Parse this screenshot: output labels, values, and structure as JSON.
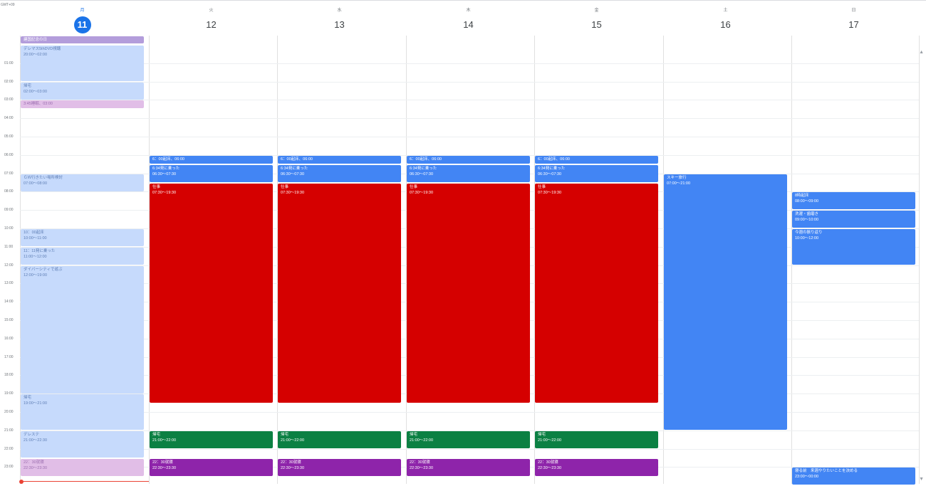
{
  "calendar": {
    "timezone_label": "GMT+09",
    "days": [
      {
        "weekday": "月",
        "date": "11",
        "today": true
      },
      {
        "weekday": "火",
        "date": "12"
      },
      {
        "weekday": "水",
        "date": "13"
      },
      {
        "weekday": "木",
        "date": "14"
      },
      {
        "weekday": "金",
        "date": "15"
      },
      {
        "weekday": "土",
        "date": "16"
      },
      {
        "weekday": "日",
        "date": "17"
      }
    ],
    "hours": [
      "01:00",
      "02:00",
      "03:00",
      "04:00",
      "05:00",
      "06:00",
      "07:00",
      "08:00",
      "09:00",
      "10:00",
      "11:00",
      "12:00",
      "13:00",
      "14:00",
      "15:00",
      "16:00",
      "17:00",
      "18:00",
      "19:00",
      "20:00",
      "21:00",
      "22:00",
      "23:00"
    ],
    "all_day_event": {
      "title": "建国記念の日"
    },
    "events": [
      {
        "day": 0,
        "start": 0,
        "end": 2,
        "title": "デレマス5thDVD視聴",
        "time": "20:00～02:00",
        "bg": "#c6dafc",
        "fg": "#5f7fb5"
      },
      {
        "day": 0,
        "start": 2,
        "end": 3,
        "title": "帰宅",
        "time": "02:00～03:00",
        "bg": "#c6dafc",
        "fg": "#5f7fb5"
      },
      {
        "day": 0,
        "start": 3,
        "end": 3.5,
        "title": "3:45睡眠、03:00",
        "time": "",
        "bg": "#e1bee7",
        "fg": "#9c6fb0"
      },
      {
        "day": 0,
        "start": 7,
        "end": 8,
        "title": "ＧＷ行きたい場所検討",
        "time": "07:00～08:00",
        "bg": "#c6dafc",
        "fg": "#5f7fb5"
      },
      {
        "day": 0,
        "start": 10,
        "end": 11,
        "title": "10：00起床",
        "time": "10:00～11:00",
        "bg": "#c6dafc",
        "fg": "#5f7fb5"
      },
      {
        "day": 0,
        "start": 11,
        "end": 12,
        "title": "11：11発に乗った",
        "time": "11:00～12:00",
        "bg": "#c6dafc",
        "fg": "#5f7fb5"
      },
      {
        "day": 0,
        "start": 12,
        "end": 19,
        "title": "ダイバーシティで遊ぶ",
        "time": "12:00～19:00",
        "bg": "#c6dafc",
        "fg": "#5f7fb5"
      },
      {
        "day": 0,
        "start": 19,
        "end": 21,
        "title": "帰宅",
        "time": "19:00～21:00",
        "bg": "#c6dafc",
        "fg": "#5f7fb5"
      },
      {
        "day": 0,
        "start": 21,
        "end": 22.5,
        "title": "デレステ",
        "time": "21:00～22:30",
        "bg": "#c6dafc",
        "fg": "#5f7fb5"
      },
      {
        "day": 0,
        "start": 22.5,
        "end": 23.5,
        "title": "22：30就寝",
        "time": "22:30～23:30",
        "bg": "#e1bee7",
        "fg": "#9c6fb0"
      },
      {
        "day": 1,
        "start": 6,
        "end": 6.5,
        "title": "6：00起床、06:00",
        "time": "",
        "bg": "#4285f4",
        "fg": "#ffffff"
      },
      {
        "day": 1,
        "start": 6.5,
        "end": 7.5,
        "title": "6:34発に乗った",
        "time": "06:30～07:30",
        "bg": "#4285f4",
        "fg": "#ffffff"
      },
      {
        "day": 1,
        "start": 7.5,
        "end": 19.5,
        "title": "仕事",
        "time": "07:30～19:30",
        "bg": "#d50000",
        "fg": "#ffffff"
      },
      {
        "day": 1,
        "start": 21,
        "end": 22,
        "title": "帰宅",
        "time": "21:00～22:00",
        "bg": "#0b8043",
        "fg": "#ffffff"
      },
      {
        "day": 1,
        "start": 22.5,
        "end": 23.5,
        "title": "22：30就寝",
        "time": "22:30～23:30",
        "bg": "#8e24aa",
        "fg": "#ffffff"
      },
      {
        "day": 2,
        "start": 6,
        "end": 6.5,
        "title": "6：00起床、06:00",
        "time": "",
        "bg": "#4285f4",
        "fg": "#ffffff"
      },
      {
        "day": 2,
        "start": 6.5,
        "end": 7.5,
        "title": "6:34発に乗った",
        "time": "06:30～07:30",
        "bg": "#4285f4",
        "fg": "#ffffff"
      },
      {
        "day": 2,
        "start": 7.5,
        "end": 19.5,
        "title": "仕事",
        "time": "07:30～19:30",
        "bg": "#d50000",
        "fg": "#ffffff"
      },
      {
        "day": 2,
        "start": 21,
        "end": 22,
        "title": "帰宅",
        "time": "21:00～22:00",
        "bg": "#0b8043",
        "fg": "#ffffff"
      },
      {
        "day": 2,
        "start": 22.5,
        "end": 23.5,
        "title": "22：30就寝",
        "time": "22:30～23:30",
        "bg": "#8e24aa",
        "fg": "#ffffff"
      },
      {
        "day": 3,
        "start": 6,
        "end": 6.5,
        "title": "6：00起床、06:00",
        "time": "",
        "bg": "#4285f4",
        "fg": "#ffffff"
      },
      {
        "day": 3,
        "start": 6.5,
        "end": 7.5,
        "title": "6:34発に乗った",
        "time": "06:30～07:30",
        "bg": "#4285f4",
        "fg": "#ffffff"
      },
      {
        "day": 3,
        "start": 7.5,
        "end": 19.5,
        "title": "仕事",
        "time": "07:30～19:30",
        "bg": "#d50000",
        "fg": "#ffffff"
      },
      {
        "day": 3,
        "start": 21,
        "end": 22,
        "title": "帰宅",
        "time": "21:00～22:00",
        "bg": "#0b8043",
        "fg": "#ffffff"
      },
      {
        "day": 3,
        "start": 22.5,
        "end": 23.5,
        "title": "22：30就寝",
        "time": "22:30～23:30",
        "bg": "#8e24aa",
        "fg": "#ffffff"
      },
      {
        "day": 4,
        "start": 6,
        "end": 6.5,
        "title": "6：00起床、06:00",
        "time": "",
        "bg": "#4285f4",
        "fg": "#ffffff"
      },
      {
        "day": 4,
        "start": 6.5,
        "end": 7.5,
        "title": "6:34発に乗った",
        "time": "06:30～07:30",
        "bg": "#4285f4",
        "fg": "#ffffff"
      },
      {
        "day": 4,
        "start": 7.5,
        "end": 19.5,
        "title": "仕事",
        "time": "07:30～19:30",
        "bg": "#d50000",
        "fg": "#ffffff"
      },
      {
        "day": 4,
        "start": 21,
        "end": 22,
        "title": "帰宅",
        "time": "21:00～22:00",
        "bg": "#0b8043",
        "fg": "#ffffff"
      },
      {
        "day": 4,
        "start": 22.5,
        "end": 23.5,
        "title": "22：30就寝",
        "time": "22:30～23:30",
        "bg": "#8e24aa",
        "fg": "#ffffff"
      },
      {
        "day": 5,
        "start": 7,
        "end": 21,
        "title": "スキー旅行",
        "time": "07:00～21:00",
        "bg": "#4285f4",
        "fg": "#ffffff"
      },
      {
        "day": 6,
        "start": 8,
        "end": 9,
        "title": "8時起床",
        "time": "08:00～09:00",
        "bg": "#4285f4",
        "fg": "#ffffff"
      },
      {
        "day": 6,
        "start": 9,
        "end": 10,
        "title": "洗濯・歯磨き",
        "time": "09:00～10:00",
        "bg": "#4285f4",
        "fg": "#ffffff"
      },
      {
        "day": 6,
        "start": 10,
        "end": 12,
        "title": "今週の振り返り",
        "time": "10:00～12:00",
        "bg": "#4285f4",
        "fg": "#ffffff"
      },
      {
        "day": 6,
        "start": 23,
        "end": 24,
        "title": "寝る前　来週やりたいことを決める",
        "time": "23:00～00:00",
        "bg": "#4285f4",
        "fg": "#ffffff"
      }
    ]
  }
}
